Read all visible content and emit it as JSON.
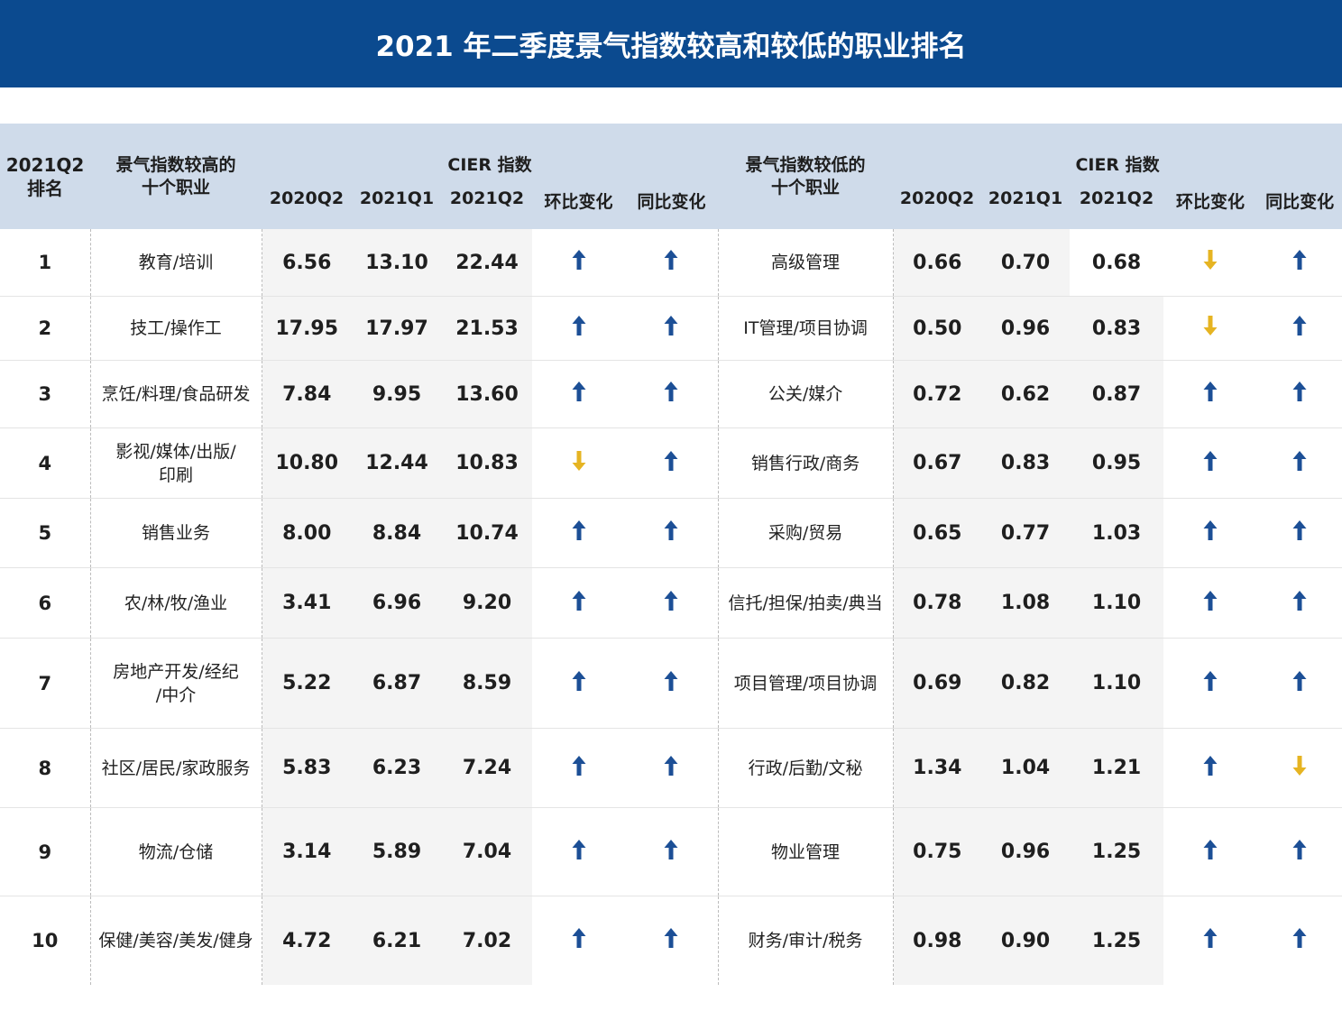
{
  "title": "2021 年二季度景气指数较高和较低的职业排名",
  "chart_data": {
    "type": "table",
    "headers": {
      "rank": "2021Q2\n排名",
      "high_occupation": "景气指数较高的\n十个职业",
      "low_occupation": "景气指数较低的\n十个职业",
      "cier_group": "CIER 指数",
      "cols": [
        "2020Q2",
        "2021Q1",
        "2021Q2",
        "环比变化",
        "同比变化"
      ]
    },
    "rows": [
      {
        "rank": "1",
        "high": "教育/培训",
        "h2020q2": "6.56",
        "h2021q1": "13.10",
        "h2021q2": "22.44",
        "h_qoq": "up",
        "h_yoy": "up",
        "low": "高级管理",
        "l2020q2": "0.66",
        "l2021q1": "0.70",
        "l2021q2": "0.68",
        "l_qoq": "down",
        "l_yoy": "up"
      },
      {
        "rank": "2",
        "high": "技工/操作工",
        "h2020q2": "17.95",
        "h2021q1": "17.97",
        "h2021q2": "21.53",
        "h_qoq": "up",
        "h_yoy": "up",
        "low": "IT管理/项目协调",
        "l2020q2": "0.50",
        "l2021q1": "0.96",
        "l2021q2": "0.83",
        "l_qoq": "down",
        "l_yoy": "up"
      },
      {
        "rank": "3",
        "high": "烹饪/料理/食品研发",
        "h2020q2": "7.84",
        "h2021q1": "9.95",
        "h2021q2": "13.60",
        "h_qoq": "up",
        "h_yoy": "up",
        "low": "公关/媒介",
        "l2020q2": "0.72",
        "l2021q1": "0.62",
        "l2021q2": "0.87",
        "l_qoq": "up",
        "l_yoy": "up"
      },
      {
        "rank": "4",
        "high": "影视/媒体/出版/\n印刷",
        "h2020q2": "10.80",
        "h2021q1": "12.44",
        "h2021q2": "10.83",
        "h_qoq": "down",
        "h_yoy": "up",
        "low": "销售行政/商务",
        "l2020q2": "0.67",
        "l2021q1": "0.83",
        "l2021q2": "0.95",
        "l_qoq": "up",
        "l_yoy": "up"
      },
      {
        "rank": "5",
        "high": "销售业务",
        "h2020q2": "8.00",
        "h2021q1": "8.84",
        "h2021q2": "10.74",
        "h_qoq": "up",
        "h_yoy": "up",
        "low": "采购/贸易",
        "l2020q2": "0.65",
        "l2021q1": "0.77",
        "l2021q2": "1.03",
        "l_qoq": "up",
        "l_yoy": "up"
      },
      {
        "rank": "6",
        "high": "农/林/牧/渔业",
        "h2020q2": "3.41",
        "h2021q1": "6.96",
        "h2021q2": "9.20",
        "h_qoq": "up",
        "h_yoy": "up",
        "low": "信托/担保/拍卖/典当",
        "l2020q2": "0.78",
        "l2021q1": "1.08",
        "l2021q2": "1.10",
        "l_qoq": "up",
        "l_yoy": "up"
      },
      {
        "rank": "7",
        "high": "房地产开发/经纪\n/中介",
        "h2020q2": "5.22",
        "h2021q1": "6.87",
        "h2021q2": "8.59",
        "h_qoq": "up",
        "h_yoy": "up",
        "low": "项目管理/项目协调",
        "l2020q2": "0.69",
        "l2021q1": "0.82",
        "l2021q2": "1.10",
        "l_qoq": "up",
        "l_yoy": "up"
      },
      {
        "rank": "8",
        "high": "社区/居民/家政服务",
        "h2020q2": "5.83",
        "h2021q1": "6.23",
        "h2021q2": "7.24",
        "h_qoq": "up",
        "h_yoy": "up",
        "low": "行政/后勤/文秘",
        "l2020q2": "1.34",
        "l2021q1": "1.04",
        "l2021q2": "1.21",
        "l_qoq": "up",
        "l_yoy": "down"
      },
      {
        "rank": "9",
        "high": "物流/仓储",
        "h2020q2": "3.14",
        "h2021q1": "5.89",
        "h2021q2": "7.04",
        "h_qoq": "up",
        "h_yoy": "up",
        "low": "物业管理",
        "l2020q2": "0.75",
        "l2021q1": "0.96",
        "l2021q2": "1.25",
        "l_qoq": "up",
        "l_yoy": "up"
      },
      {
        "rank": "10",
        "high": "保健/美容/美发/健身",
        "h2020q2": "4.72",
        "h2021q1": "6.21",
        "h2021q2": "7.02",
        "h_qoq": "up",
        "h_yoy": "up",
        "low": "财务/审计/税务",
        "l2020q2": "0.98",
        "l2021q1": "0.90",
        "l2021q2": "1.25",
        "l_qoq": "up",
        "l_yoy": "up"
      }
    ],
    "colors": {
      "header_bg": "#cfdbea",
      "title_bg": "#0b4a8f",
      "up": "#1c4f96",
      "down": "#e6b422"
    }
  }
}
